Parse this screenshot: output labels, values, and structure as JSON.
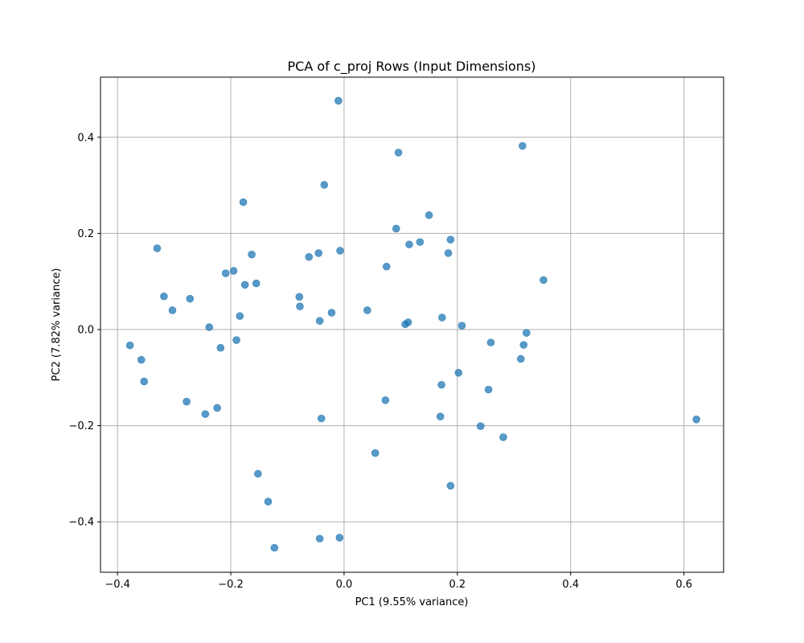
{
  "chart_data": {
    "type": "scatter",
    "title": "PCA of c_proj Rows (Input Dimensions)",
    "xlabel": "PC1 (9.55% variance)",
    "ylabel": "PC2 (7.82% variance)",
    "xlim": [
      -0.43,
      0.67
    ],
    "ylim": [
      -0.505,
      0.525
    ],
    "xticks": [
      -0.4,
      -0.2,
      0.0,
      0.2,
      0.4,
      0.6
    ],
    "xtick_labels": [
      "−0.4",
      "−0.2",
      "0.0",
      "0.2",
      "0.4",
      "0.6"
    ],
    "yticks": [
      -0.4,
      -0.2,
      0.0,
      0.2,
      0.4
    ],
    "ytick_labels": [
      "−0.4",
      "−0.2",
      "0.0",
      "0.2",
      "0.4"
    ],
    "grid": true,
    "marker_color": "#1f77b4",
    "marker_alpha": 0.75,
    "points": [
      {
        "x": -0.01,
        "y": 0.476
      },
      {
        "x": 0.096,
        "y": 0.368
      },
      {
        "x": 0.315,
        "y": 0.382
      },
      {
        "x": -0.035,
        "y": 0.301
      },
      {
        "x": -0.178,
        "y": 0.265
      },
      {
        "x": 0.15,
        "y": 0.238
      },
      {
        "x": 0.092,
        "y": 0.21
      },
      {
        "x": 0.188,
        "y": 0.187
      },
      {
        "x": 0.134,
        "y": 0.182
      },
      {
        "x": 0.115,
        "y": 0.177
      },
      {
        "x": -0.33,
        "y": 0.169
      },
      {
        "x": -0.007,
        "y": 0.164
      },
      {
        "x": -0.045,
        "y": 0.159
      },
      {
        "x": 0.184,
        "y": 0.159
      },
      {
        "x": -0.163,
        "y": 0.156
      },
      {
        "x": -0.062,
        "y": 0.151
      },
      {
        "x": 0.075,
        "y": 0.131
      },
      {
        "x": -0.195,
        "y": 0.122
      },
      {
        "x": -0.209,
        "y": 0.117
      },
      {
        "x": 0.352,
        "y": 0.103
      },
      {
        "x": -0.155,
        "y": 0.096
      },
      {
        "x": -0.175,
        "y": 0.093
      },
      {
        "x": -0.318,
        "y": 0.069
      },
      {
        "x": -0.079,
        "y": 0.068
      },
      {
        "x": -0.272,
        "y": 0.064
      },
      {
        "x": -0.078,
        "y": 0.048
      },
      {
        "x": -0.303,
        "y": 0.04
      },
      {
        "x": 0.041,
        "y": 0.04
      },
      {
        "x": -0.022,
        "y": 0.035
      },
      {
        "x": -0.184,
        "y": 0.028
      },
      {
        "x": 0.173,
        "y": 0.025
      },
      {
        "x": -0.043,
        "y": 0.018
      },
      {
        "x": 0.113,
        "y": 0.015
      },
      {
        "x": 0.108,
        "y": 0.011
      },
      {
        "x": 0.208,
        "y": 0.008
      },
      {
        "x": -0.238,
        "y": 0.005
      },
      {
        "x": 0.322,
        "y": -0.007
      },
      {
        "x": -0.19,
        "y": -0.022
      },
      {
        "x": 0.259,
        "y": -0.027
      },
      {
        "x": 0.317,
        "y": -0.032
      },
      {
        "x": -0.378,
        "y": -0.033
      },
      {
        "x": -0.218,
        "y": -0.038
      },
      {
        "x": -0.358,
        "y": -0.063
      },
      {
        "x": 0.312,
        "y": -0.061
      },
      {
        "x": 0.202,
        "y": -0.09
      },
      {
        "x": -0.353,
        "y": -0.108
      },
      {
        "x": 0.172,
        "y": -0.115
      },
      {
        "x": 0.255,
        "y": -0.125
      },
      {
        "x": 0.073,
        "y": -0.147
      },
      {
        "x": -0.278,
        "y": -0.15
      },
      {
        "x": -0.224,
        "y": -0.163
      },
      {
        "x": -0.245,
        "y": -0.176
      },
      {
        "x": 0.17,
        "y": -0.181
      },
      {
        "x": -0.04,
        "y": -0.185
      },
      {
        "x": 0.622,
        "y": -0.187
      },
      {
        "x": 0.241,
        "y": -0.201
      },
      {
        "x": 0.281,
        "y": -0.224
      },
      {
        "x": 0.055,
        "y": -0.257
      },
      {
        "x": -0.152,
        "y": -0.3
      },
      {
        "x": 0.188,
        "y": -0.325
      },
      {
        "x": -0.134,
        "y": -0.358
      },
      {
        "x": -0.043,
        "y": -0.435
      },
      {
        "x": -0.008,
        "y": -0.433
      },
      {
        "x": -0.123,
        "y": -0.454
      }
    ]
  }
}
